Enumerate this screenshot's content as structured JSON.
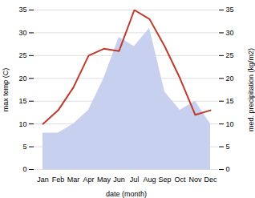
{
  "chart_data": {
    "type": "line",
    "xlabel": "date (month)",
    "ylabel": "max temp (C)",
    "y2label": "med. precipitation (kg/m2)",
    "categories": [
      "Jan",
      "Feb",
      "Mar",
      "Apr",
      "May",
      "Jun",
      "Jul",
      "Aug",
      "Sep",
      "Oct",
      "Nov",
      "Dec"
    ],
    "series": [
      {
        "type": "line",
        "color": "#c0392b",
        "values": [
          10,
          13,
          18,
          25,
          26.5,
          26,
          35,
          33,
          27,
          20,
          12,
          13
        ]
      },
      {
        "type": "area",
        "color": "#c8d0f0",
        "axis": "y2",
        "values": [
          8,
          8,
          10,
          13,
          20,
          29,
          27,
          31,
          17,
          13,
          15,
          10
        ]
      }
    ],
    "ylim": [
      0,
      35
    ],
    "yticks": [
      0,
      5,
      10,
      15,
      20,
      25,
      30,
      35
    ],
    "y2lim": [
      0,
      35
    ],
    "y2ticks": [
      0,
      5,
      10,
      15,
      20,
      25,
      30,
      35
    ],
    "grid": true
  }
}
